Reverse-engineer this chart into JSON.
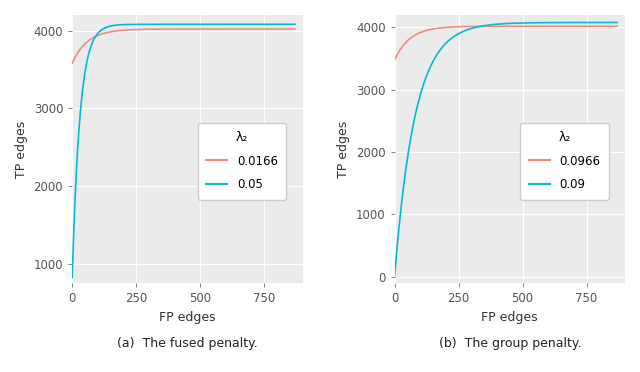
{
  "fig_width": 6.4,
  "fig_height": 3.72,
  "bg_color": "#EBEBEB",
  "grid_color": "#FFFFFF",
  "captions": [
    "(a)  The fused penalty.",
    "(b)  The group penalty."
  ],
  "xlabel": "FP edges",
  "ylabel": "TP edges",
  "xlim": [
    0,
    900
  ],
  "ylim_left": [
    750,
    4200
  ],
  "ylim_right": [
    -100,
    4200
  ],
  "yticks_left": [
    1000,
    2000,
    3000,
    4000
  ],
  "yticks_right": [
    0,
    1000,
    2000,
    3000,
    4000
  ],
  "xticks": [
    0,
    250,
    500,
    750
  ],
  "legend_title": "λ₂",
  "plots": [
    {
      "lines": [
        {
          "label": "0.0166",
          "color": "#F28B82",
          "tp_at_0": 3580,
          "tp_max": 4020,
          "fp_max": 870,
          "rate": 60,
          "curve_shape": "log_rise"
        },
        {
          "label": "0.05",
          "color": "#00BCD4",
          "tp_at_0": 820,
          "tp_max": 4080,
          "fp_max": 870,
          "rate": 30,
          "curve_shape": "log_rise"
        }
      ]
    },
    {
      "lines": [
        {
          "label": "0.0966",
          "color": "#F28B82",
          "tp_at_0": 3480,
          "tp_max": 4020,
          "fp_max": 870,
          "rate": 60,
          "curve_shape": "log_rise"
        },
        {
          "label": "0.09",
          "color": "#00BCD4",
          "tp_at_0": 0,
          "tp_max": 4080,
          "fp_max": 870,
          "rate": 80,
          "curve_shape": "log_rise_steep"
        }
      ]
    }
  ]
}
